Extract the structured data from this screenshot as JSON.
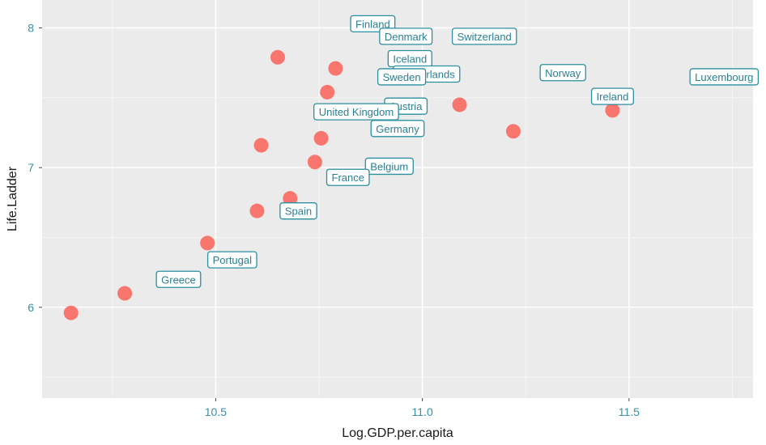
{
  "chart_data": {
    "type": "scatter",
    "title": "",
    "xlabel": "Log.GDP.per.capita",
    "ylabel": "Life.Ladder",
    "xlim": [
      10.08,
      11.8
    ],
    "ylim": [
      5.35,
      8.2
    ],
    "x_ticks": [
      10.5,
      11.0,
      11.5
    ],
    "x_tick_labels": [
      "10.5",
      "11.0",
      "11.5"
    ],
    "y_ticks": [
      6,
      7,
      8
    ],
    "y_tick_labels": [
      "6",
      "7",
      "8"
    ],
    "grid": true,
    "colors": {
      "panel": "#ebebeb",
      "grid_major": "#ffffff",
      "point": "#f8766d",
      "label_border": "#2a8fa0",
      "label_text": "#2a7f93",
      "tick_text": "#3a8fa8"
    },
    "points": [
      {
        "x": 10.15,
        "y": 5.96
      },
      {
        "x": 10.28,
        "y": 6.1
      },
      {
        "x": 10.48,
        "y": 6.46
      },
      {
        "x": 10.6,
        "y": 6.69
      },
      {
        "x": 10.68,
        "y": 6.78
      },
      {
        "x": 10.61,
        "y": 7.16
      },
      {
        "x": 10.65,
        "y": 7.79
      },
      {
        "x": 10.74,
        "y": 7.04
      },
      {
        "x": 10.755,
        "y": 7.21
      },
      {
        "x": 10.77,
        "y": 7.54
      },
      {
        "x": 10.79,
        "y": 7.71
      },
      {
        "x": 11.09,
        "y": 7.45
      },
      {
        "x": 11.22,
        "y": 7.26
      },
      {
        "x": 11.46,
        "y": 7.41
      }
    ],
    "labels": [
      {
        "text": "Finland",
        "x": 10.88,
        "y": 8.03
      },
      {
        "text": "Denmark",
        "x": 10.96,
        "y": 7.94
      },
      {
        "text": "Switzerland",
        "x": 11.15,
        "y": 7.94
      },
      {
        "text": "Iceland",
        "x": 10.97,
        "y": 7.78
      },
      {
        "text": "Netherlands",
        "x": 11.01,
        "y": 7.67
      },
      {
        "text": "Sweden",
        "x": 10.95,
        "y": 7.65
      },
      {
        "text": "Norway",
        "x": 11.34,
        "y": 7.68
      },
      {
        "text": "Luxembourg",
        "x": 11.73,
        "y": 7.65
      },
      {
        "text": "Ireland",
        "x": 11.46,
        "y": 7.51
      },
      {
        "text": "Austria",
        "x": 10.96,
        "y": 7.44
      },
      {
        "text": "United Kingdom",
        "x": 10.84,
        "y": 7.4
      },
      {
        "text": "Germany",
        "x": 10.94,
        "y": 7.28
      },
      {
        "text": "Belgium",
        "x": 10.92,
        "y": 7.01
      },
      {
        "text": "France",
        "x": 10.82,
        "y": 6.93
      },
      {
        "text": "Spain",
        "x": 10.7,
        "y": 6.69
      },
      {
        "text": "Portugal",
        "x": 10.54,
        "y": 6.34
      },
      {
        "text": "Greece",
        "x": 10.41,
        "y": 6.2
      }
    ]
  }
}
